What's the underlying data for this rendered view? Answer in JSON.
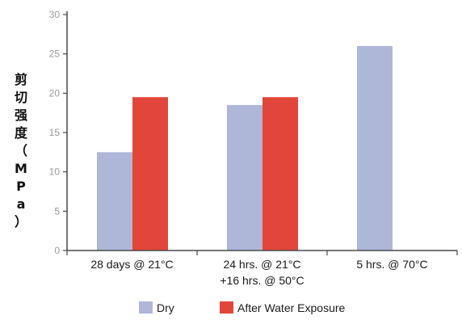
{
  "chart_data": {
    "type": "bar",
    "ylabel": "剪切强度（MPa）",
    "ylim": [
      0,
      30
    ],
    "yticks": [
      0,
      5,
      10,
      15,
      20,
      25,
      30
    ],
    "categories": [
      [
        "28 days @ 21°C"
      ],
      [
        "24 hrs. @ 21°C",
        "+16 hrs. @ 50°C"
      ],
      [
        "5 hrs. @ 70°C"
      ]
    ],
    "series": [
      {
        "name": "Dry",
        "color": "#aeb7d8",
        "values": [
          12.5,
          18.5,
          26.0
        ]
      },
      {
        "name": "After Water Exposure",
        "color": "#e2463a",
        "values": [
          19.5,
          19.5,
          null
        ]
      }
    ],
    "legend_position": "bottom",
    "grid": false
  }
}
